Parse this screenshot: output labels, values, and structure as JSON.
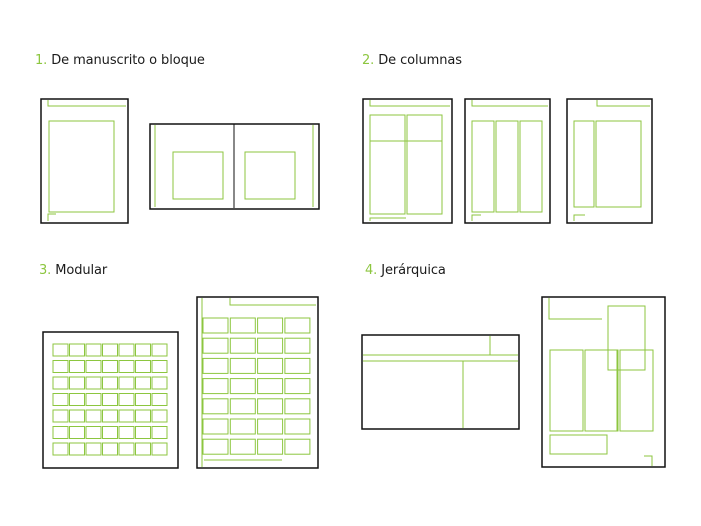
{
  "sections": [
    {
      "number": "1.",
      "title": "De manuscrito o bloque"
    },
    {
      "number": "2.",
      "title": "De columnas"
    },
    {
      "number": "3.",
      "title": "Modular"
    },
    {
      "number": "4.",
      "title": "Jerárquica"
    }
  ],
  "colors": {
    "accent": "#8cc63f",
    "outline": "#111111",
    "text": "#1a1a1a",
    "background": "#ffffff"
  }
}
